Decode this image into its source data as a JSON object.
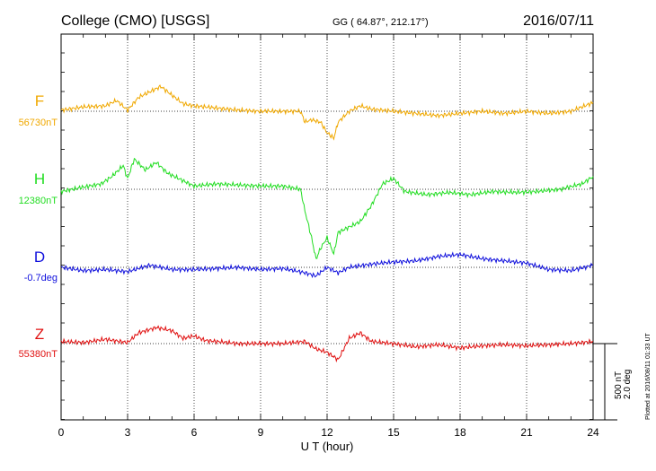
{
  "header": {
    "station": "College (CMO)  [USGS]",
    "coords": "GG ( 64.87°, 212.17°)",
    "date": "2016/07/11"
  },
  "side_note": "Plotted at 2016/08/11 01:33 UT",
  "scale_bar": {
    "line1": "500 nT",
    "line2": "2.0 deg"
  },
  "chart_data": {
    "type": "line",
    "title": "College (CMO)  [USGS]",
    "xlabel": "U T (hour)",
    "ylabel": "",
    "xlim": [
      0,
      24
    ],
    "xticks": [
      "0",
      "3",
      "6",
      "9",
      "12",
      "15",
      "18",
      "21",
      "24"
    ],
    "grid": true,
    "series": [
      {
        "name": "F",
        "baseline_label": "56730nT",
        "color": "#f0a800",
        "values": [
          [
            0,
            1
          ],
          [
            1,
            4
          ],
          [
            2,
            5
          ],
          [
            2.5,
            10
          ],
          [
            3,
            1
          ],
          [
            3.5,
            13
          ],
          [
            4,
            18
          ],
          [
            4.5,
            23
          ],
          [
            5,
            15
          ],
          [
            5.5,
            7
          ],
          [
            6,
            5
          ],
          [
            7,
            3
          ],
          [
            8,
            1
          ],
          [
            9,
            0
          ],
          [
            10,
            0
          ],
          [
            10.8,
            0
          ],
          [
            11,
            -10
          ],
          [
            11.3,
            -8
          ],
          [
            11.7,
            -10
          ],
          [
            12,
            -20
          ],
          [
            12.3,
            -25
          ],
          [
            12.5,
            -10
          ],
          [
            13,
            0
          ],
          [
            13.5,
            5
          ],
          [
            14,
            2
          ],
          [
            15,
            0
          ],
          [
            16,
            -2
          ],
          [
            17,
            -4
          ],
          [
            18,
            -2
          ],
          [
            19,
            0
          ],
          [
            20,
            -2
          ],
          [
            21,
            0
          ],
          [
            22,
            -2
          ],
          [
            23,
            0
          ],
          [
            24,
            8
          ]
        ]
      },
      {
        "name": "H",
        "baseline_label": "12380nT",
        "color": "#22dd22",
        "values": [
          [
            0,
            -2
          ],
          [
            1,
            2
          ],
          [
            1.8,
            5
          ],
          [
            2.3,
            12
          ],
          [
            2.8,
            22
          ],
          [
            3,
            10
          ],
          [
            3.3,
            28
          ],
          [
            3.8,
            18
          ],
          [
            4.3,
            25
          ],
          [
            4.8,
            15
          ],
          [
            5.5,
            8
          ],
          [
            6,
            3
          ],
          [
            7,
            5
          ],
          [
            8,
            4
          ],
          [
            9,
            3
          ],
          [
            10,
            3
          ],
          [
            10.8,
            0
          ],
          [
            11,
            -20
          ],
          [
            11.3,
            -45
          ],
          [
            11.5,
            -65
          ],
          [
            11.7,
            -55
          ],
          [
            12,
            -45
          ],
          [
            12.3,
            -60
          ],
          [
            12.5,
            -40
          ],
          [
            13,
            -35
          ],
          [
            13.5,
            -30
          ],
          [
            14,
            -15
          ],
          [
            14.5,
            5
          ],
          [
            15,
            10
          ],
          [
            15.5,
            -2
          ],
          [
            16.5,
            -5
          ],
          [
            17.5,
            -3
          ],
          [
            18.5,
            -5
          ],
          [
            19.5,
            -2
          ],
          [
            20.5,
            -3
          ],
          [
            21.5,
            -2
          ],
          [
            22.5,
            0
          ],
          [
            23.5,
            5
          ],
          [
            24,
            12
          ]
        ]
      },
      {
        "name": "D",
        "baseline_label": "-0.7deg",
        "color": "#1010dd",
        "values": [
          [
            0,
            0
          ],
          [
            1,
            -3
          ],
          [
            2,
            -2
          ],
          [
            3,
            -4
          ],
          [
            4,
            2
          ],
          [
            5,
            -2
          ],
          [
            6,
            -2
          ],
          [
            7,
            -1
          ],
          [
            8,
            0
          ],
          [
            9,
            -2
          ],
          [
            10,
            -1
          ],
          [
            11,
            -5
          ],
          [
            11.5,
            -8
          ],
          [
            12,
            0
          ],
          [
            12.5,
            -5
          ],
          [
            13,
            0
          ],
          [
            14,
            3
          ],
          [
            15,
            5
          ],
          [
            16,
            6
          ],
          [
            17,
            10
          ],
          [
            18,
            12
          ],
          [
            19,
            8
          ],
          [
            20,
            6
          ],
          [
            21,
            4
          ],
          [
            22,
            -2
          ],
          [
            23,
            -3
          ],
          [
            24,
            2
          ]
        ]
      },
      {
        "name": "Z",
        "baseline_label": "55380nT",
        "color": "#e01010",
        "values": [
          [
            0,
            2
          ],
          [
            1,
            1
          ],
          [
            2,
            4
          ],
          [
            3,
            1
          ],
          [
            3.5,
            10
          ],
          [
            4.3,
            15
          ],
          [
            5,
            12
          ],
          [
            5.5,
            5
          ],
          [
            6,
            7
          ],
          [
            6.5,
            3
          ],
          [
            7,
            2
          ],
          [
            8,
            0
          ],
          [
            9,
            0
          ],
          [
            10,
            0
          ],
          [
            11,
            2
          ],
          [
            11.5,
            -5
          ],
          [
            12,
            -8
          ],
          [
            12.5,
            -15
          ],
          [
            13,
            5
          ],
          [
            13.5,
            10
          ],
          [
            14,
            2
          ],
          [
            15,
            0
          ],
          [
            16,
            -3
          ],
          [
            17,
            -1
          ],
          [
            18,
            -4
          ],
          [
            19,
            -2
          ],
          [
            20,
            -1
          ],
          [
            21,
            -2
          ],
          [
            22,
            -1
          ],
          [
            23,
            0
          ],
          [
            24,
            2
          ]
        ]
      }
    ]
  }
}
